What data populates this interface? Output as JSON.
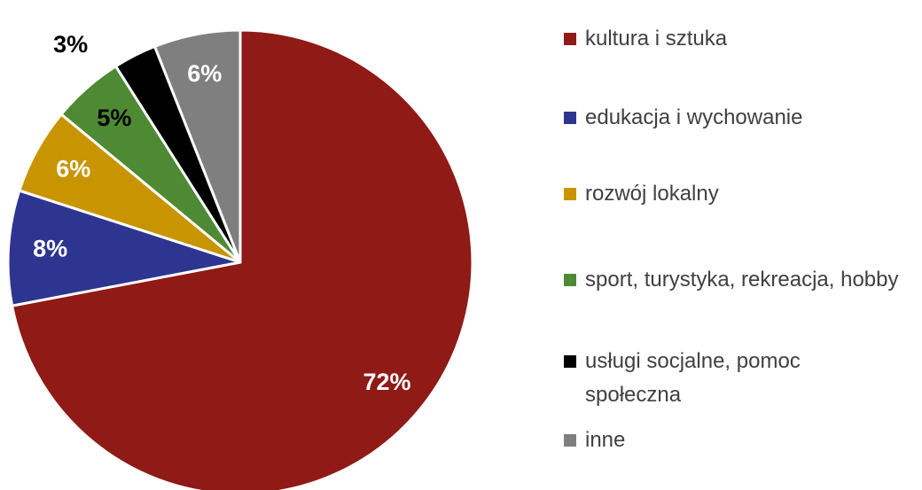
{
  "chart_data": {
    "type": "pie",
    "categories": [
      "kultura i sztuka",
      "edukacja i wychowanie",
      "rozwój lokalny",
      "sport, turystyka, rekreacja, hobby",
      "usługi socjalne, pomoc społeczna",
      "inne"
    ],
    "values": [
      72,
      8,
      6,
      5,
      3,
      6
    ],
    "value_labels": [
      "72%",
      "8%",
      "6%",
      "5%",
      "3%",
      "6%"
    ],
    "colors": [
      "#8f1a16",
      "#2e3591",
      "#c89400",
      "#4e8a34",
      "#000000",
      "#7f7f7f"
    ],
    "label_colors": [
      "#ffffff",
      "#ffffff",
      "#ffffff",
      "#000000",
      "#000000",
      "#ffffff"
    ],
    "legend": "right"
  }
}
